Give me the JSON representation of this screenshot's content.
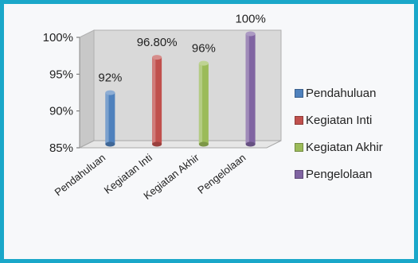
{
  "chart_data": {
    "type": "bar",
    "categories": [
      "Pendahuluan",
      "Kegiatan Inti",
      "Kegiatan Akhir",
      "Pengelolaan"
    ],
    "values": [
      92,
      96.8,
      96,
      100
    ],
    "data_labels": [
      "92%",
      "96.80%",
      "96%",
      "100%"
    ],
    "ylim": [
      85,
      100
    ],
    "yticks": [
      85,
      90,
      95,
      100
    ],
    "ytick_labels": [
      "85%",
      "90%",
      "95%",
      "100%"
    ],
    "grid": false,
    "legend_position": "right",
    "style": "3d-cylinder",
    "series": [
      {
        "name": "Pendahuluan",
        "color": "#4f81bd"
      },
      {
        "name": "Kegiatan Inti",
        "color": "#c0504d"
      },
      {
        "name": "Kegiatan Akhir",
        "color": "#9bbb59"
      },
      {
        "name": "Pengelolaan",
        "color": "#8064a2"
      }
    ]
  }
}
